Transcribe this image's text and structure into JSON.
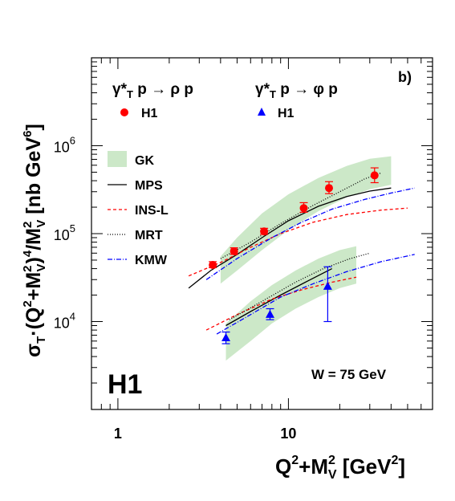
{
  "chart_data": {
    "type": "scatter",
    "panel_label": "b)",
    "xlabel_parts": {
      "q": "Q",
      "q_sup": "2",
      "plus_m": "+M",
      "m_sup": "2",
      "m_sub": "V",
      "units_open": " [GeV",
      "units_sup": "2",
      "units_close": "]"
    },
    "ylabel_parts": {
      "sigma": "σ",
      "sigma_sub": "T",
      "dot_open": "·(Q",
      "q_sup": "2",
      "plus_m": "+M",
      "m_sup": "2",
      "m_sub": "V",
      "close": ")",
      "pow": "4",
      "slash_m": "/M",
      "m2_sup": "2",
      "m2_sub": "V",
      "units": " [nb GeV",
      "units_sup": "6",
      "units_close": "]"
    },
    "x_scale": "log",
    "y_scale": "log",
    "xlim": [
      0.7,
      70
    ],
    "ylim": [
      1000,
      10000000
    ],
    "x_ticks": [
      {
        "value": 1,
        "label": "1"
      },
      {
        "value": 10,
        "label": "10"
      }
    ],
    "y_ticks": [
      {
        "value": 10000,
        "base": "10",
        "exp": "4"
      },
      {
        "value": 100000,
        "base": "10",
        "exp": "5"
      },
      {
        "value": 1000000,
        "base": "10",
        "exp": "6"
      }
    ],
    "process_rho": {
      "g": "γ*",
      "g_sub": "T",
      "rest": " p → ρ p"
    },
    "process_phi": {
      "g": "γ*",
      "g_sub": "T",
      "rest": " p → φ p"
    },
    "experiment_label": "H1",
    "energy_label": "W = 75 GeV",
    "legend_placement": "left",
    "colors": {
      "rho": "#ff0000",
      "phi": "#0000ff",
      "gk_band": "#cce8c8",
      "mps": "#000000",
      "insl": "#ff0000",
      "mrt": "#000000",
      "kmw": "#0000ff"
    },
    "legend": [
      {
        "key": "rho",
        "label": "H1",
        "marker": "circle"
      },
      {
        "key": "phi",
        "label": "H1",
        "marker": "triangle"
      },
      {
        "key": "gk",
        "label": "GK",
        "marker": "band"
      },
      {
        "key": "mps",
        "label": "MPS",
        "marker": "solid"
      },
      {
        "key": "insl",
        "label": "INS-L",
        "marker": "dashed"
      },
      {
        "key": "mrt",
        "label": "MRT",
        "marker": "dotted"
      },
      {
        "key": "kmw",
        "label": "KMW",
        "marker": "dashdot"
      }
    ],
    "series": [
      {
        "key": "rho",
        "points": [
          {
            "x": 3.6,
            "y": 44000,
            "ylo": 41000,
            "yhi": 48000
          },
          {
            "x": 4.8,
            "y": 63000,
            "ylo": 58000,
            "yhi": 69000
          },
          {
            "x": 7.2,
            "y": 106000,
            "ylo": 98000,
            "yhi": 115000
          },
          {
            "x": 12.3,
            "y": 195000,
            "ylo": 175000,
            "yhi": 225000
          },
          {
            "x": 17.3,
            "y": 330000,
            "ylo": 285000,
            "yhi": 390000
          },
          {
            "x": 32.0,
            "y": 460000,
            "ylo": 380000,
            "yhi": 560000
          }
        ]
      },
      {
        "key": "phi",
        "points": [
          {
            "x": 4.3,
            "y": 6500,
            "ylo": 5600,
            "yhi": 7600
          },
          {
            "x": 7.8,
            "y": 12000,
            "ylo": 10500,
            "yhi": 14000
          },
          {
            "x": 17.0,
            "y": 25000,
            "ylo": 10000,
            "yhi": 42000
          }
        ]
      },
      {
        "key": "gk_rho",
        "band": [
          {
            "x": 4.0,
            "lo": 27000,
            "hi": 55000
          },
          {
            "x": 5.0,
            "lo": 38000,
            "hi": 90000
          },
          {
            "x": 7.0,
            "lo": 65000,
            "hi": 170000
          },
          {
            "x": 10.0,
            "lo": 110000,
            "hi": 280000
          },
          {
            "x": 15.0,
            "lo": 180000,
            "hi": 430000
          },
          {
            "x": 22.0,
            "lo": 260000,
            "hi": 590000
          },
          {
            "x": 30.0,
            "lo": 320000,
            "hi": 710000
          },
          {
            "x": 40.0,
            "lo": 360000,
            "hi": 760000
          }
        ]
      },
      {
        "key": "gk_phi",
        "band": [
          {
            "x": 4.3,
            "lo": 3600,
            "hi": 9500
          },
          {
            "x": 6.0,
            "lo": 6000,
            "hi": 17000
          },
          {
            "x": 8.0,
            "lo": 9500,
            "hi": 26000
          },
          {
            "x": 11.0,
            "lo": 14000,
            "hi": 38000
          },
          {
            "x": 15.0,
            "lo": 19000,
            "hi": 52000
          },
          {
            "x": 20.0,
            "lo": 24000,
            "hi": 65000
          },
          {
            "x": 25.0,
            "lo": 27000,
            "hi": 72000
          }
        ]
      },
      {
        "key": "mps_rho",
        "line": [
          [
            2.6,
            24000
          ],
          [
            3.5,
            38000
          ],
          [
            5,
            58000
          ],
          [
            7,
            90000
          ],
          [
            10,
            140000
          ],
          [
            15,
            205000
          ],
          [
            22,
            265000
          ],
          [
            30,
            305000
          ],
          [
            40,
            330000
          ]
        ]
      },
      {
        "key": "mps_phi",
        "line": [
          [
            4.3,
            9000
          ],
          [
            6,
            13000
          ],
          [
            9,
            20000
          ],
          [
            13,
            29000
          ],
          [
            18,
            40000
          ]
        ]
      },
      {
        "key": "insl_rho",
        "line": [
          [
            2.6,
            33000
          ],
          [
            4,
            47000
          ],
          [
            6,
            70000
          ],
          [
            9,
            100000
          ],
          [
            14,
            135000
          ],
          [
            22,
            165000
          ],
          [
            35,
            185000
          ],
          [
            50,
            195000
          ]
        ]
      },
      {
        "key": "insl_phi",
        "line": [
          [
            3.3,
            8000
          ],
          [
            5,
            12000
          ],
          [
            8,
            18000
          ],
          [
            12,
            23000
          ],
          [
            18,
            28000
          ],
          [
            25,
            32000
          ]
        ]
      },
      {
        "key": "mrt_rho",
        "line": [
          [
            4.0,
            52000
          ],
          [
            6,
            80000
          ],
          [
            9,
            130000
          ],
          [
            14,
            210000
          ],
          [
            20,
            300000
          ],
          [
            28,
            420000
          ],
          [
            35,
            490000
          ]
        ]
      },
      {
        "key": "mrt_phi",
        "line": [
          [
            4.5,
            10500
          ],
          [
            7,
            17000
          ],
          [
            11,
            28000
          ],
          [
            16,
            40000
          ],
          [
            23,
            52000
          ],
          [
            30,
            60000
          ]
        ]
      },
      {
        "key": "kmw_rho",
        "line": [
          [
            3.3,
            30000
          ],
          [
            5,
            52000
          ],
          [
            8,
            90000
          ],
          [
            12,
            135000
          ],
          [
            18,
            190000
          ],
          [
            28,
            245000
          ],
          [
            40,
            290000
          ],
          [
            55,
            330000
          ]
        ]
      },
      {
        "key": "kmw_phi",
        "line": [
          [
            3.8,
            7200
          ],
          [
            6,
            12000
          ],
          [
            9,
            19000
          ],
          [
            14,
            27000
          ],
          [
            22,
            37000
          ],
          [
            35,
            48000
          ],
          [
            55,
            58000
          ]
        ]
      }
    ]
  }
}
